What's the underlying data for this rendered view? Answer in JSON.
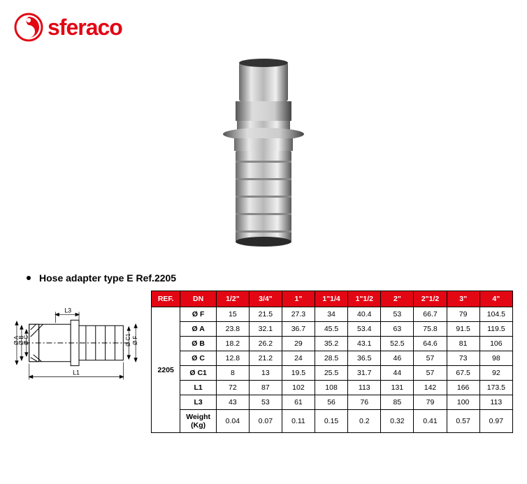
{
  "brand": "sferaco",
  "heading": "Hose adapter type E Ref.2205",
  "table": {
    "headers": [
      "REF.",
      "DN",
      "1/2\"",
      "3/4\"",
      "1\"",
      "1\"1/4",
      "1\"1/2",
      "2\"",
      "2\"1/2",
      "3\"",
      "4\""
    ],
    "ref": "2205",
    "rows": [
      {
        "param": "Ø F",
        "v": [
          "15",
          "21.5",
          "27.3",
          "34",
          "40.4",
          "53",
          "66.7",
          "79",
          "104.5"
        ]
      },
      {
        "param": "Ø A",
        "v": [
          "23.8",
          "32.1",
          "36.7",
          "45.5",
          "53.4",
          "63",
          "75.8",
          "91.5",
          "119.5"
        ]
      },
      {
        "param": "Ø B",
        "v": [
          "18.2",
          "26.2",
          "29",
          "35.2",
          "43.1",
          "52.5",
          "64.6",
          "81",
          "106"
        ]
      },
      {
        "param": "Ø C",
        "v": [
          "12.8",
          "21.2",
          "24",
          "28.5",
          "36.5",
          "46",
          "57",
          "73",
          "98"
        ]
      },
      {
        "param": "Ø C1",
        "v": [
          "8",
          "13",
          "19.5",
          "25.5",
          "31.7",
          "44",
          "57",
          "67.5",
          "92"
        ]
      },
      {
        "param": "L1",
        "v": [
          "72",
          "87",
          "102",
          "108",
          "113",
          "131",
          "142",
          "166",
          "173.5"
        ]
      },
      {
        "param": "L3",
        "v": [
          "43",
          "53",
          "61",
          "56",
          "76",
          "85",
          "79",
          "100",
          "113"
        ]
      },
      {
        "param": "Weight (Kg)",
        "v": [
          "0.04",
          "0.07",
          "0.11",
          "0.15",
          "0.2",
          "0.32",
          "0.41",
          "0.57",
          "0.97"
        ]
      }
    ]
  },
  "diagram_labels": {
    "L3": "L3",
    "L1": "L1",
    "OA": "Ø A",
    "OB": "Ø B",
    "OC": "Ø C",
    "OC1": "Ø C1",
    "OF": "Ø F"
  },
  "colors": {
    "brand": "#e30613",
    "border": "#000",
    "bg": "#fff"
  }
}
